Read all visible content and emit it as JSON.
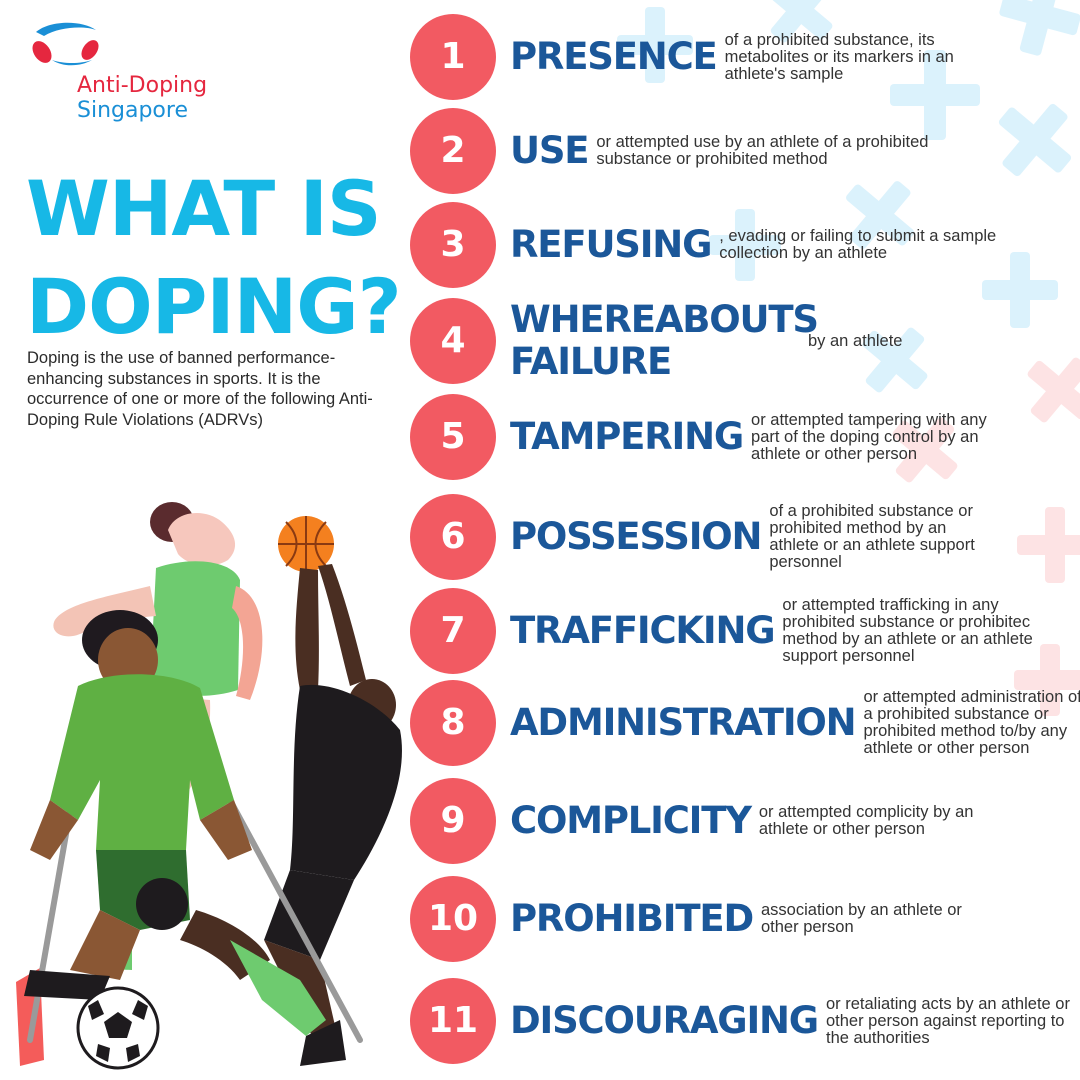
{
  "logo": {
    "line1": "Anti-Doping",
    "line2": "Singapore"
  },
  "title": {
    "line1": "WHAT IS",
    "line2": "DOPING?"
  },
  "description": "Doping is the use of banned performance-enhancing substances in sports. It is the occurrence of one or more of the following Anti-Doping Rule Violations (ADRVs)",
  "rules": [
    {
      "number": "1",
      "keyword": "PRESENCE",
      "text": "of a prohibited substance, its metabolites or its markers in an athlete's sample"
    },
    {
      "number": "2",
      "keyword": "USE",
      "text": "or attempted use by an athlete of a prohibited substance or prohibited method"
    },
    {
      "number": "3",
      "keyword": "REFUSING",
      "text": ", evading or failing to submit a sample collection by an athlete"
    },
    {
      "number": "4",
      "keyword": "WHEREABOUTS FAILURE",
      "text": "by an athlete"
    },
    {
      "number": "5",
      "keyword": "TAMPERING",
      "text": "or attempted tampering with any part of the doping control by an athlete or other person"
    },
    {
      "number": "6",
      "keyword": "POSSESSION",
      "text": "of a prohibited substance or prohibited method by an athlete or an athlete support personnel"
    },
    {
      "number": "7",
      "keyword": "TRAFFICKING",
      "text": "or attempted trafficking in any prohibited substance or prohibitec method by an athlete or an athlete support personnel"
    },
    {
      "number": "8",
      "keyword": "ADMINISTRATION",
      "text": "or attempted administration of a prohibited substance or prohibited method to/by any athlete or other person"
    },
    {
      "number": "9",
      "keyword": "COMPLICITY",
      "text": "or attempted complicity by an athlete or other person"
    },
    {
      "number": "10",
      "keyword": "PROHIBITED",
      "text": "association by an athlete or other person"
    },
    {
      "number": "11",
      "keyword": "DISCOURAGING",
      "text": "or retaliating acts by an athlete or other person against reporting to the authorities"
    }
  ],
  "colors": {
    "title": "#17b8e6",
    "keyword": "#1b5799",
    "number_circle": "#f25a62",
    "logo_red": "#e5273f",
    "logo_blue": "#1a8fd6",
    "cross_blue": "#d9f1fb",
    "cross_pink": "#fde1e2"
  }
}
